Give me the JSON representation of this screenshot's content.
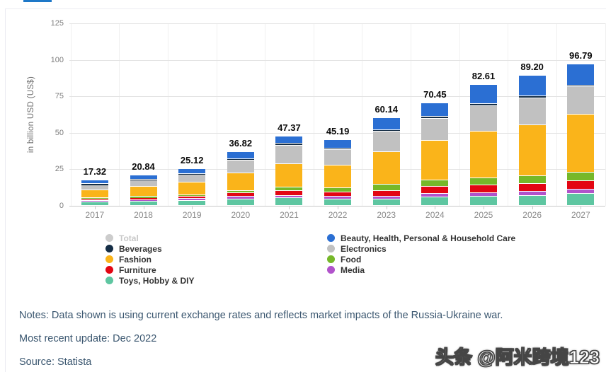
{
  "axis": {
    "y_title": "in billion USD (US$)"
  },
  "chart_data": {
    "type": "bar",
    "stacked": true,
    "title": "",
    "xlabel": "",
    "ylabel": "in billion USD (US$)",
    "ylim": [
      0,
      125
    ],
    "yticks": [
      0,
      25,
      50,
      75,
      100,
      125
    ],
    "grid": true,
    "legend_position": "bottom",
    "categories": [
      "2017",
      "2018",
      "2019",
      "2020",
      "2021",
      "2022",
      "2023",
      "2024",
      "2025",
      "2026",
      "2027"
    ],
    "totals": [
      17.32,
      20.84,
      25.12,
      36.82,
      47.37,
      45.19,
      60.14,
      70.45,
      82.61,
      89.2,
      96.79
    ],
    "total_labels": [
      "17.32",
      "20.84",
      "25.12",
      "36.82",
      "47.37",
      "45.19",
      "60.14",
      "70.45",
      "82.61",
      "89.20",
      "96.79"
    ],
    "series": [
      {
        "name": "Toys, Hobby & DIY",
        "color": "#5ec6a1",
        "values": [
          2.4,
          2.9,
          3.5,
          4.5,
          5.2,
          4.5,
          4.4,
          5.9,
          6.4,
          7.0,
          8.1
        ]
      },
      {
        "name": "Media",
        "color": "#b153cb",
        "values": [
          1.0,
          1.1,
          1.3,
          1.6,
          1.6,
          1.6,
          1.9,
          2.3,
          2.5,
          2.7,
          3.2
        ]
      },
      {
        "name": "Furniture",
        "color": "#e30613",
        "values": [
          1.2,
          1.3,
          1.6,
          2.4,
          3.2,
          3.2,
          4.0,
          5.0,
          5.2,
          5.5,
          5.7
        ]
      },
      {
        "name": "Food",
        "color": "#76b829",
        "values": [
          0.7,
          0.8,
          1.0,
          1.8,
          2.6,
          3.0,
          4.4,
          4.1,
          4.7,
          5.2,
          5.7
        ]
      },
      {
        "name": "Fashion",
        "color": "#fab41a",
        "values": [
          5.5,
          6.9,
          8.5,
          12.2,
          16.2,
          15.5,
          22.3,
          27.2,
          32.2,
          35.0,
          40.0
        ]
      },
      {
        "name": "Electronics",
        "color": "#c1c1c1",
        "values": [
          3.6,
          4.4,
          5.2,
          8.4,
          12.6,
          10.5,
          13.7,
          15.2,
          17.4,
          18.3,
          18.7
        ]
      },
      {
        "name": "Beverages",
        "color": "#152e46",
        "values": [
          0.4,
          0.5,
          0.6,
          1.0,
          1.1,
          0.9,
          1.1,
          1.5,
          1.3,
          1.3,
          1.2
        ]
      },
      {
        "name": "Beauty, Health, Personal & Household Care",
        "color": "#2b6fd3",
        "values": [
          2.52,
          2.94,
          3.42,
          4.92,
          4.87,
          5.99,
          8.34,
          9.25,
          12.91,
          14.2,
          14.19
        ]
      }
    ]
  },
  "legend": {
    "columns": [
      [
        {
          "label": "Total",
          "color": "#cccccc",
          "disabled": true
        },
        {
          "label": "Beverages",
          "color": "#152e46",
          "disabled": false
        },
        {
          "label": "Fashion",
          "color": "#fab41a",
          "disabled": false
        },
        {
          "label": "Furniture",
          "color": "#e30613",
          "disabled": false
        },
        {
          "label": "Toys, Hobby & DIY",
          "color": "#5ec6a1",
          "disabled": false
        }
      ],
      [
        {
          "label": "Beauty, Health, Personal & Household Care",
          "color": "#2b6fd3",
          "disabled": false
        },
        {
          "label": "Electronics",
          "color": "#c1c1c1",
          "disabled": false
        },
        {
          "label": "Food",
          "color": "#76b829",
          "disabled": false
        },
        {
          "label": "Media",
          "color": "#b153cb",
          "disabled": false
        }
      ]
    ]
  },
  "footer": {
    "notes": "Notes: Data shown is using current exchange rates and reflects market impacts of the Russia-Ukraine war.",
    "update": "Most recent update: Dec 2022",
    "source": "Source: Statista"
  },
  "watermark": {
    "text": "头条 @阿米跨境123"
  },
  "colors": {
    "accent_tab": "#1e78c8",
    "note_text": "#3a566f",
    "total_label": "#0a0a0a"
  }
}
